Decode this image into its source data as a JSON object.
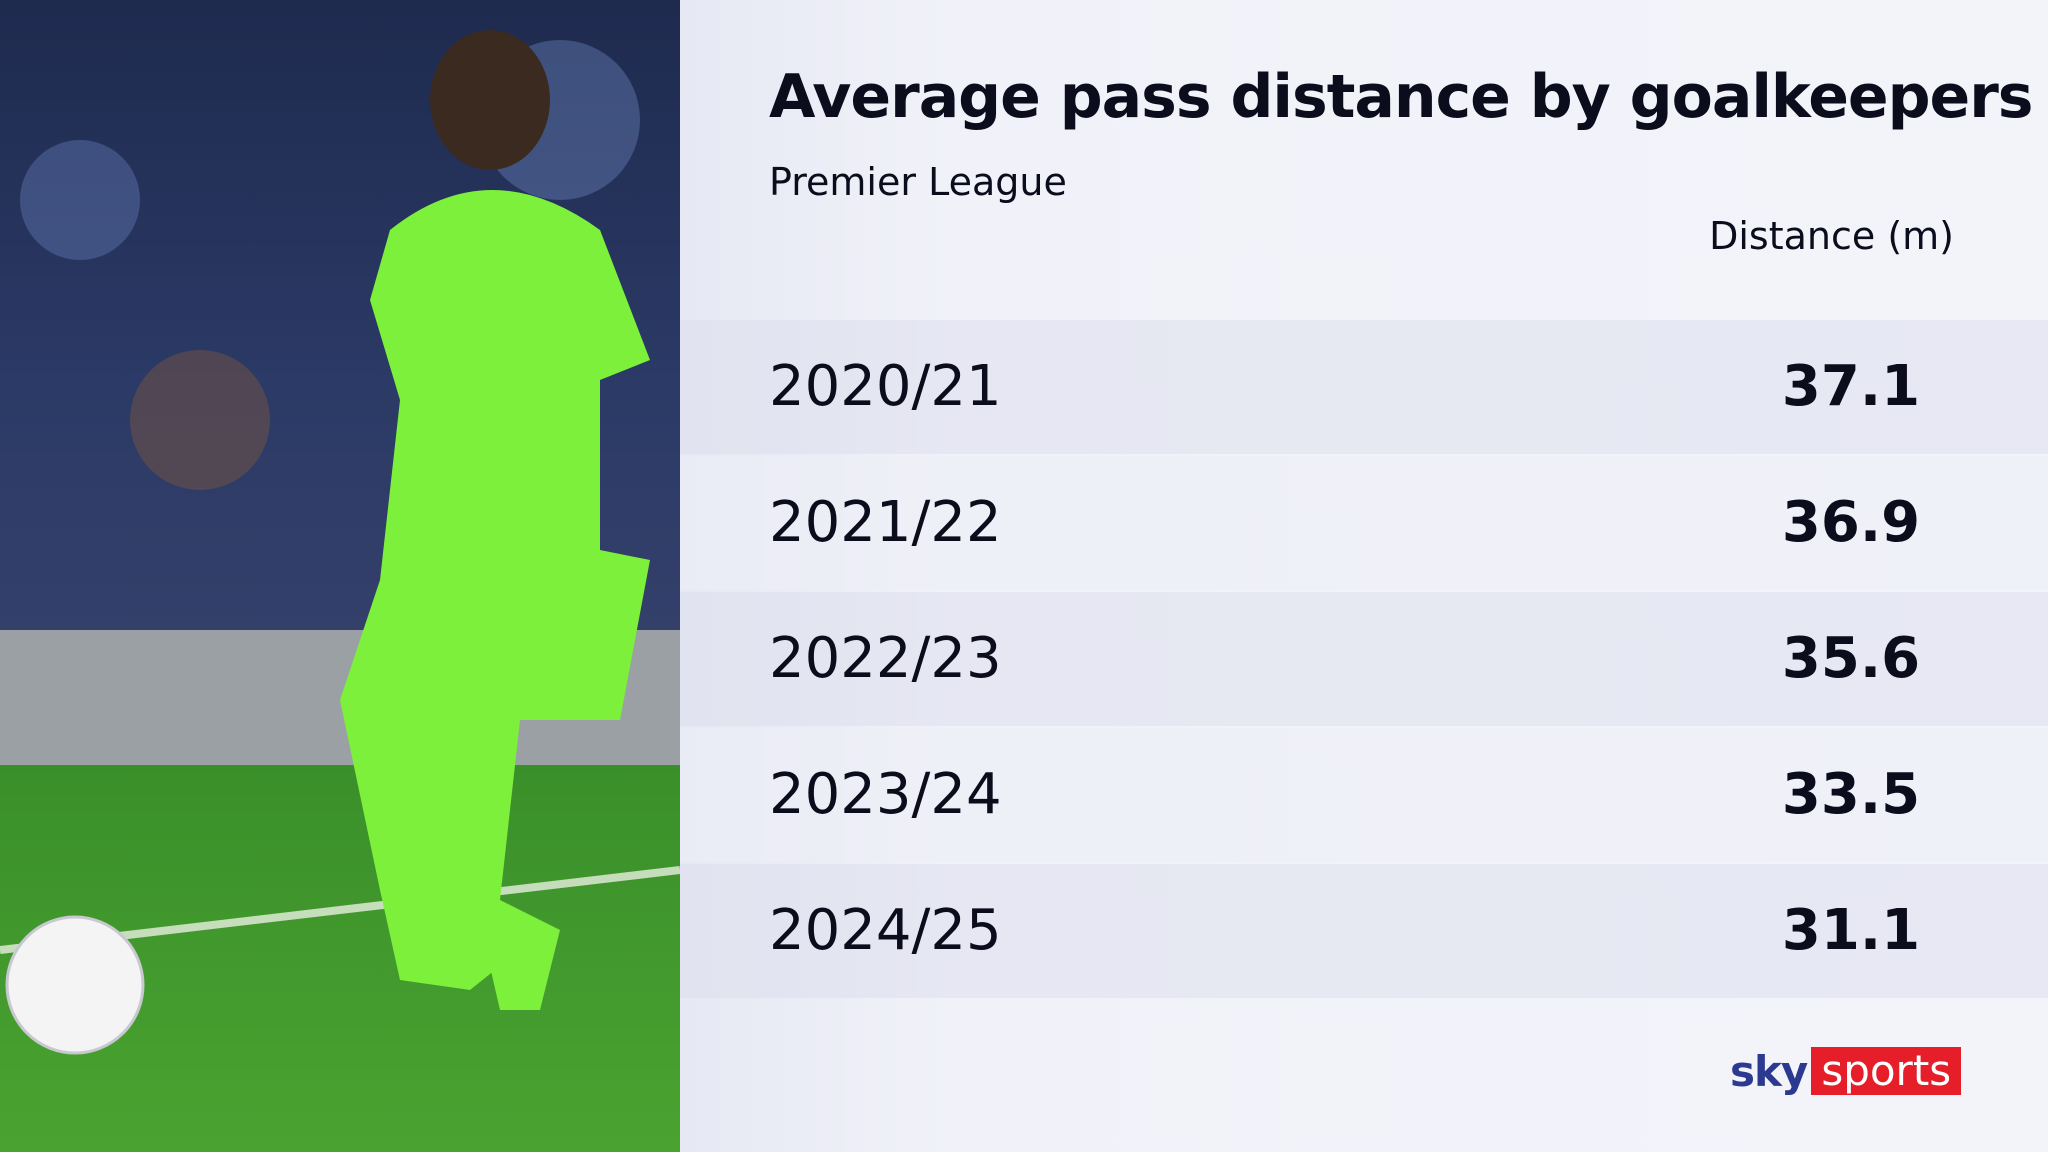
{
  "header": {
    "title": "Average pass distance by goalkeepers",
    "subtitle": "Premier League"
  },
  "table": {
    "column_header": "Distance (m)",
    "rows": [
      [
        "2020/21",
        "37.1"
      ],
      [
        "2021/22",
        "36.9"
      ],
      [
        "2022/23",
        "35.6"
      ],
      [
        "2023/24",
        "33.5"
      ],
      [
        "2024/25",
        "31.1"
      ]
    ]
  },
  "logo": {
    "brand": "sky",
    "product": "sports"
  }
}
